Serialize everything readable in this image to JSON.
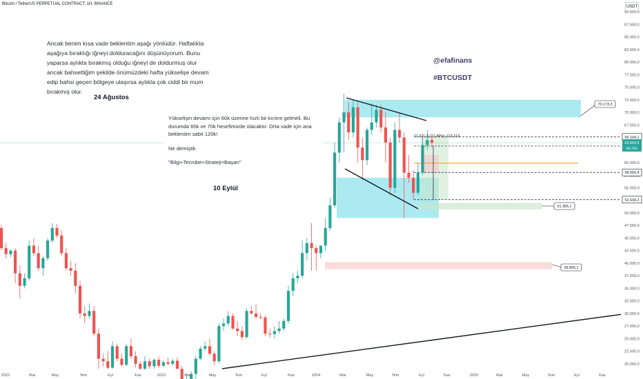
{
  "header": {
    "title": "Bitcoin / TetherUS PERPETUAL CONTRACT, 1H, BINANCE",
    "currency_button": "USDT"
  },
  "notes": {
    "note1": "Ancak benim kısa vade beklentim aşağı yönlüdür. Haftalıkta aşağıya bıraktığı iğneyi dolduracağını düşünüyorum. Bunu yaparsa aylıkta bırakmış olduğu iğneyi de doldurmuş olur ancak bahsettiğim şekilde önümüzdeki hafta yükselişe devam edip bahsi geçen bölgeye ulaşırsa aylıkta çok ciddi bir mum bırakmış olur.",
    "date1": "24 Ağustos",
    "note2_line1": "Yükselişin devamı için 60k üzerine hızlı bir kırılım gelmeli. Bu durumda 65k ve 70k hesefimizde olacaktır. Orta vade için ana beklentim sabit 120k!",
    "note2_line2": "Ne demiştik",
    "note2_line3": "\"Bilgi+Tecrübe+Strateji=Başarı\"",
    "date2": "10 Eylül",
    "handle": "@efafinans",
    "hashtag": "#BTCUSDT"
  },
  "measure_label": "11.311,3 (21,49%) 113.113",
  "annotations": {
    "callout_high": "70.173,3",
    "callout_mid": "51.355,1",
    "callout_low": "39.800,1"
  },
  "chart_data": {
    "type": "candlestick",
    "symbol": "BTCUSDT",
    "y_axis": {
      "min": 18750,
      "max": 91250,
      "ticks": [
        "90.000,0",
        "87.500,0",
        "85.000,0",
        "82.500,0",
        "80.000,0",
        "77.500,0",
        "75.000,0",
        "72.500,0",
        "70.000,0",
        "67.500,0",
        "65.000,0",
        "62.500,0",
        "60.000,0",
        "57.500,0",
        "55.000,0",
        "52.500,0",
        "50.000,0",
        "47.500,0",
        "45.000,0",
        "42.500,0",
        "40.000,0",
        "37.500,0",
        "35.000,0",
        "32.500,0",
        "30.000,0",
        "27.500,0",
        "25.000,0",
        "22.500,0",
        "20.000,0"
      ],
      "tick_values": [
        90000,
        87500,
        85000,
        82500,
        80000,
        77500,
        75000,
        72500,
        70000,
        67500,
        65000,
        62500,
        60000,
        57500,
        55000,
        52500,
        50000,
        47500,
        45000,
        42500,
        40000,
        37500,
        35000,
        32500,
        30000,
        27500,
        25000,
        22500,
        20000
      ]
    },
    "x_axis": {
      "labels": [
        "2022",
        "Mar",
        "May",
        "Tem",
        "Eyl",
        "Kas",
        "2023",
        "Mar",
        "May",
        "Tem",
        "Eyl",
        "Kas",
        "2024",
        "Mar",
        "May",
        "Tem",
        "Eyl",
        "Kas",
        "2025",
        "Mar",
        "May",
        "Tem",
        "Eyl",
        "Kas"
      ]
    },
    "price_labels": [
      {
        "text": "65.104,1",
        "value": 65104.1,
        "color": "#131722"
      },
      {
        "text": "63.959,9",
        "value": 63959.9,
        "color": "#26a69a"
      },
      {
        "text": "6d 21h",
        "value": 62900,
        "color": "#26a69a"
      },
      {
        "text": "58.050,4",
        "value": 58050.4,
        "color": "#131722"
      },
      {
        "text": "52.634,2",
        "value": 52634.2,
        "color": "#131722"
      }
    ],
    "zones": [
      {
        "name": "target-zone-70k",
        "from": 69000,
        "to": 72500,
        "color": "#80deea"
      },
      {
        "name": "support-zone-50k",
        "from": 49000,
        "to": 57000,
        "color": "#80deea"
      },
      {
        "name": "zone-51k",
        "from": 50700,
        "to": 52000,
        "color": "#c8e6c9"
      },
      {
        "name": "zone-39k",
        "from": 38800,
        "to": 40200,
        "color": "#f8c9c9"
      }
    ],
    "levels": [
      {
        "name": "level-65k",
        "value": 65104.1,
        "style": "dashed"
      },
      {
        "name": "level-63k",
        "value": 63300,
        "style": "dashed"
      },
      {
        "name": "level-60k",
        "value": 59900,
        "style": "solid",
        "color": "#ff9800"
      },
      {
        "name": "level-58k",
        "value": 58050.4,
        "style": "dashed"
      },
      {
        "name": "level-52k",
        "value": 52634.2,
        "style": "dashed"
      }
    ],
    "candles": [
      {
        "o": 47000,
        "h": 47600,
        "c": 43000,
        "l": 42500
      },
      {
        "o": 43000,
        "h": 44000,
        "c": 41800,
        "l": 41000
      },
      {
        "o": 41800,
        "h": 42800,
        "c": 42500,
        "l": 41200
      },
      {
        "o": 42500,
        "h": 43000,
        "c": 38000,
        "l": 36000
      },
      {
        "o": 38000,
        "h": 39500,
        "c": 35500,
        "l": 33000
      },
      {
        "o": 35500,
        "h": 38000,
        "c": 37000,
        "l": 35000
      },
      {
        "o": 37000,
        "h": 44500,
        "c": 43500,
        "l": 36500
      },
      {
        "o": 43500,
        "h": 45000,
        "c": 42000,
        "l": 41500
      },
      {
        "o": 42000,
        "h": 43500,
        "c": 39000,
        "l": 38500
      },
      {
        "o": 39000,
        "h": 41500,
        "c": 41000,
        "l": 37500
      },
      {
        "o": 41000,
        "h": 45000,
        "c": 44500,
        "l": 40500
      },
      {
        "o": 44500,
        "h": 48000,
        "c": 47000,
        "l": 44000
      },
      {
        "o": 47000,
        "h": 47800,
        "c": 45500,
        "l": 45000
      },
      {
        "o": 45500,
        "h": 46500,
        "c": 42000,
        "l": 41500
      },
      {
        "o": 42000,
        "h": 43000,
        "c": 39000,
        "l": 38500
      },
      {
        "o": 39000,
        "h": 40500,
        "c": 38500,
        "l": 37500
      },
      {
        "o": 38500,
        "h": 40000,
        "c": 35500,
        "l": 34000
      },
      {
        "o": 35500,
        "h": 36500,
        "c": 30000,
        "l": 29000
      },
      {
        "o": 30000,
        "h": 31500,
        "c": 29500,
        "l": 28000
      },
      {
        "o": 29500,
        "h": 32000,
        "c": 30500,
        "l": 29000
      },
      {
        "o": 30500,
        "h": 31500,
        "c": 26000,
        "l": 25500
      },
      {
        "o": 26000,
        "h": 27000,
        "c": 21000,
        "l": 19000
      },
      {
        "o": 21000,
        "h": 22000,
        "c": 20500,
        "l": 19500
      },
      {
        "o": 20500,
        "h": 22500,
        "c": 19200,
        "l": 18900
      },
      {
        "o": 19200,
        "h": 24500,
        "c": 23500,
        "l": 19000
      },
      {
        "o": 23500,
        "h": 24000,
        "c": 21000,
        "l": 20500
      },
      {
        "o": 21000,
        "h": 22000,
        "c": 19800,
        "l": 19500
      },
      {
        "o": 19800,
        "h": 24000,
        "c": 23500,
        "l": 19600
      },
      {
        "o": 23500,
        "h": 25000,
        "c": 21500,
        "l": 21000
      },
      {
        "o": 21500,
        "h": 22500,
        "c": 20000,
        "l": 19300
      },
      {
        "o": 20000,
        "h": 20500,
        "c": 19000,
        "l": 18800
      },
      {
        "o": 19000,
        "h": 21500,
        "c": 20500,
        "l": 18800
      },
      {
        "o": 20500,
        "h": 21000,
        "c": 19500,
        "l": 19000
      },
      {
        "o": 19500,
        "h": 21000,
        "c": 20800,
        "l": 19000
      },
      {
        "o": 20800,
        "h": 21500,
        "c": 19600,
        "l": 19200
      },
      {
        "o": 19600,
        "h": 20800,
        "c": 20300,
        "l": 19300
      },
      {
        "o": 20300,
        "h": 21200,
        "c": 20000,
        "l": 19700
      },
      {
        "o": 20000,
        "h": 21000,
        "c": 20600,
        "l": 19600
      },
      {
        "o": 20600,
        "h": 21300,
        "c": 19000,
        "l": 18900
      },
      {
        "o": 19000,
        "h": 19600,
        "c": 16500,
        "l": 15500
      },
      {
        "o": 16500,
        "h": 18000,
        "c": 16800,
        "l": 15800
      },
      {
        "o": 16800,
        "h": 18500,
        "c": 18000,
        "l": 16500
      },
      {
        "o": 18000,
        "h": 21500,
        "c": 21000,
        "l": 17000
      },
      {
        "o": 21000,
        "h": 23500,
        "c": 23000,
        "l": 20800
      },
      {
        "o": 23000,
        "h": 24500,
        "c": 23500,
        "l": 22500
      },
      {
        "o": 23500,
        "h": 25000,
        "c": 22000,
        "l": 21500
      },
      {
        "o": 22000,
        "h": 22500,
        "c": 20500,
        "l": 19700
      },
      {
        "o": 20500,
        "h": 28000,
        "c": 27500,
        "l": 20000
      },
      {
        "o": 27500,
        "h": 29000,
        "c": 28000,
        "l": 26500
      },
      {
        "o": 28000,
        "h": 30500,
        "c": 29500,
        "l": 27500
      },
      {
        "o": 29500,
        "h": 30000,
        "c": 27000,
        "l": 26800
      },
      {
        "o": 27000,
        "h": 28500,
        "c": 26500,
        "l": 25500
      },
      {
        "o": 26500,
        "h": 27500,
        "c": 25300,
        "l": 24800
      },
      {
        "o": 25300,
        "h": 31000,
        "c": 30500,
        "l": 25000
      },
      {
        "o": 30500,
        "h": 31500,
        "c": 30000,
        "l": 29800
      },
      {
        "o": 30000,
        "h": 31800,
        "c": 29300,
        "l": 29000
      },
      {
        "o": 29300,
        "h": 30000,
        "c": 29200,
        "l": 28800
      },
      {
        "o": 29200,
        "h": 29600,
        "c": 26000,
        "l": 25500
      },
      {
        "o": 26000,
        "h": 27000,
        "c": 25900,
        "l": 25200
      },
      {
        "o": 25900,
        "h": 27500,
        "c": 26500,
        "l": 25000
      },
      {
        "o": 26500,
        "h": 28500,
        "c": 27000,
        "l": 26000
      },
      {
        "o": 27000,
        "h": 29000,
        "c": 28500,
        "l": 26500
      },
      {
        "o": 28500,
        "h": 35500,
        "c": 34500,
        "l": 28000
      },
      {
        "o": 34500,
        "h": 38000,
        "c": 37000,
        "l": 33500
      },
      {
        "o": 37000,
        "h": 38500,
        "c": 37500,
        "l": 36000
      },
      {
        "o": 37500,
        "h": 44500,
        "c": 42000,
        "l": 37000
      },
      {
        "o": 42000,
        "h": 45000,
        "c": 44000,
        "l": 40500
      },
      {
        "o": 44000,
        "h": 48000,
        "c": 43000,
        "l": 38500
      },
      {
        "o": 43000,
        "h": 43500,
        "c": 42000,
        "l": 38600
      },
      {
        "o": 42000,
        "h": 43000,
        "c": 43500,
        "l": 41000
      },
      {
        "o": 43500,
        "h": 49000,
        "c": 47000,
        "l": 42500
      },
      {
        "o": 47000,
        "h": 53000,
        "c": 51500,
        "l": 46500
      },
      {
        "o": 51500,
        "h": 64000,
        "c": 62000,
        "l": 51000
      },
      {
        "o": 62000,
        "h": 69000,
        "c": 68000,
        "l": 60000
      },
      {
        "o": 68000,
        "h": 73700,
        "c": 70000,
        "l": 62000
      },
      {
        "o": 70000,
        "h": 72000,
        "c": 66000,
        "l": 64500
      },
      {
        "o": 66000,
        "h": 72500,
        "c": 71000,
        "l": 65000
      },
      {
        "o": 71000,
        "h": 72000,
        "c": 63000,
        "l": 60000
      },
      {
        "o": 63000,
        "h": 65000,
        "c": 60500,
        "l": 56500
      },
      {
        "o": 60500,
        "h": 67000,
        "c": 66500,
        "l": 59500
      },
      {
        "o": 66500,
        "h": 71800,
        "c": 68000,
        "l": 65500
      },
      {
        "o": 68000,
        "h": 71500,
        "c": 70500,
        "l": 67000
      },
      {
        "o": 70500,
        "h": 71500,
        "c": 67000,
        "l": 66000
      },
      {
        "o": 67000,
        "h": 70000,
        "c": 64000,
        "l": 60000
      },
      {
        "o": 64000,
        "h": 65000,
        "c": 55000,
        "l": 53500
      },
      {
        "o": 55000,
        "h": 68000,
        "c": 66500,
        "l": 54000
      },
      {
        "o": 66500,
        "h": 70000,
        "c": 65000,
        "l": 64000
      },
      {
        "o": 65000,
        "h": 66000,
        "c": 58000,
        "l": 49000
      },
      {
        "o": 58000,
        "h": 61500,
        "c": 57000,
        "l": 56000
      },
      {
        "o": 57000,
        "h": 58500,
        "c": 54000,
        "l": 52600
      },
      {
        "o": 54000,
        "h": 60000,
        "c": 58000,
        "l": 53500
      },
      {
        "o": 58000,
        "h": 65000,
        "c": 63500,
        "l": 57500
      },
      {
        "o": 63500,
        "h": 66500,
        "c": 64500,
        "l": 62500
      },
      {
        "o": 64500,
        "h": 65200,
        "c": 63960,
        "l": 63000
      }
    ]
  }
}
